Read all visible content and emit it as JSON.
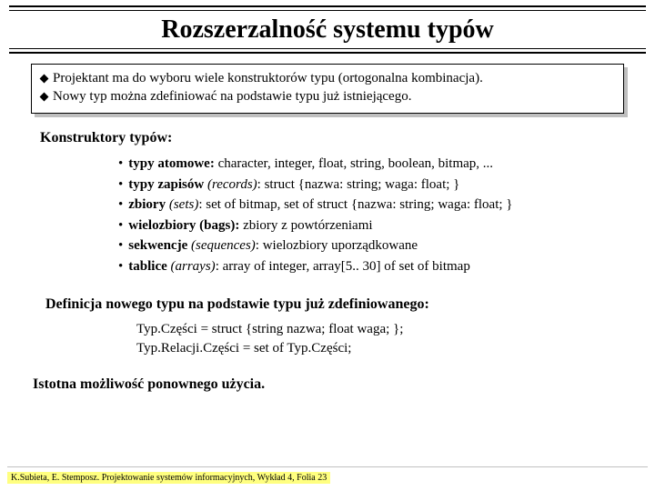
{
  "colors": {
    "background": "#ffffff",
    "text": "#000000",
    "shadow": "#bfbfbf",
    "footer_bg": "#ffff80",
    "rule": "#c0c0c0"
  },
  "typography": {
    "family": "Times New Roman",
    "title_size_pt": 28,
    "body_size_pt": 15,
    "head_size_pt": 16,
    "footer_size_pt": 10
  },
  "title": "Rozszerzalność systemu typów",
  "box": {
    "items": [
      "Projektant ma do wyboru wiele konstruktorów typu  (ortogonalna kombinacja).",
      "Nowy typ można zdefiniować na podstawie typu już istniejącego."
    ]
  },
  "constructors": {
    "heading": "Konstruktory typów:",
    "items": [
      {
        "lead_bold": "typy atomowe:",
        "rest": " character, integer, float, string, boolean, bitmap, ..."
      },
      {
        "lead_bold": "typy zapisów",
        "paren_italic": " (records)",
        "colon": ": ",
        "rest": "struct {nazwa: string; waga: float; }"
      },
      {
        "lead_bold": "zbiory",
        "paren_italic": " (sets)",
        "colon": ": ",
        "rest": "set of bitmap, set of struct {nazwa: string; waga: float; }"
      },
      {
        "lead_bold": "wielozbiory (bags):",
        "rest": " zbiory z powtórzeniami"
      },
      {
        "lead_bold": "sekwencje",
        "paren_italic": " (sequences)",
        "colon": ": ",
        "rest": "wielozbiory uporządkowane"
      },
      {
        "lead_bold": "tablice",
        "paren_italic": " (arrays)",
        "colon": ": ",
        "rest": "array of integer, array[5.. 30] of set of bitmap"
      }
    ]
  },
  "definition": {
    "heading": "Definicja nowego typu na podstawie typu już zdefiniowanego:",
    "lines": [
      "Typ.Części = struct {string nazwa; float waga; };",
      "Typ.Relacji.Części = set of Typ.Części;"
    ]
  },
  "reuse": "Istotna możliwość ponownego użycia.",
  "footer": "K.Subieta, E. Stemposz. Projektowanie systemów informacyjnych, Wykład 4, Folia 23"
}
